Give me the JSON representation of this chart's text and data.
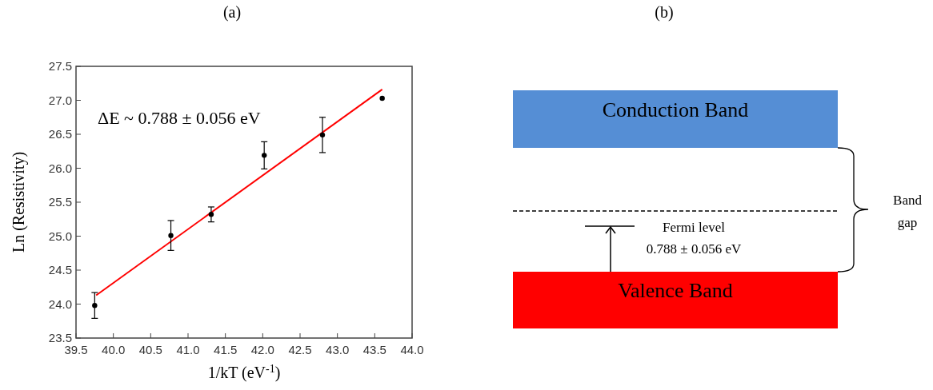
{
  "chart_data": [
    {
      "type": "scatter",
      "title": "(a)",
      "xlabel": "1/kT (eV$^{-1}$)",
      "ylabel": "Ln (Resistivity)",
      "annotations": [
        "ΔE ~ 0.788 ± 0.056 eV"
      ],
      "xlim": [
        39.5,
        44.0
      ],
      "xticks": [
        39.5,
        {
          "value": 40,
          "label": "40.0"
        },
        40.5,
        {
          "value": 41,
          "label": "41.0"
        },
        41.5,
        {
          "value": 42,
          "label": "42.0"
        },
        42.5,
        {
          "value": 43,
          "label": "43.0"
        },
        43.5,
        {
          "value": 44,
          "label": "44.0"
        }
      ],
      "ylim": [
        23.5,
        27.5
      ],
      "yticks": [
        23.5,
        {
          "value": 24,
          "label": "24.0"
        },
        24.5,
        {
          "value": 25,
          "label": "25.0"
        },
        25.5,
        {
          "value": 26,
          "label": "26.0"
        },
        26.5,
        {
          "value": 27,
          "label": "27.0"
        },
        27.5
      ],
      "series": [
        {
          "type": "line",
          "marker": "none",
          "color": "#ff0000",
          "x": [
            39.77,
            43.6
          ],
          "values": [
            24.13,
            27.16
          ]
        },
        {
          "type": "scatter",
          "marker": "circle",
          "color": "#000000",
          "x": [
            39.75,
            40.77,
            41.31,
            42.02,
            42.8,
            43.6
          ],
          "values": [
            23.98,
            25.01,
            25.32,
            26.19,
            26.49,
            27.03
          ],
          "errors": [
            0.19,
            0.22,
            0.11,
            0.2,
            0.26,
            null
          ]
        }
      ]
    },
    {
      "type": "other",
      "title": "(b)",
      "annotations": [
        "Conduction Band",
        "Valence Band",
        "Fermi level",
        "0.788 ± 0.056 eV",
        "Band gap"
      ]
    }
  ]
}
